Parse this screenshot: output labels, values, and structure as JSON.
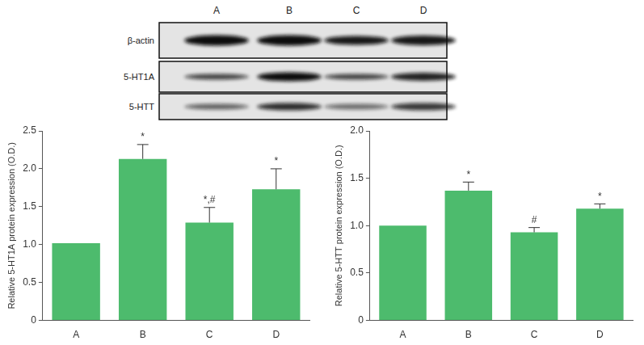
{
  "blot": {
    "lanes": [
      "A",
      "B",
      "C",
      "D"
    ],
    "rows": [
      "β-actin",
      "5-HT1A",
      "5-HTT"
    ]
  },
  "chart_data": [
    {
      "type": "bar",
      "categories": [
        "A",
        "B",
        "C",
        "D"
      ],
      "values": [
        1.02,
        2.13,
        1.29,
        1.73
      ],
      "errors": [
        0,
        0.19,
        0.2,
        0.27
      ],
      "annotations": [
        {
          "category": "B",
          "text": "*"
        },
        {
          "category": "C",
          "text": "*,#"
        },
        {
          "category": "D",
          "text": "*"
        }
      ],
      "y_label": "Relative 5-HT1A protein expression (O.D.)",
      "color": "#4dbb6d",
      "ylim": [
        0,
        2.5
      ],
      "yticks": [
        0,
        0.5,
        {
          "value": 1,
          "label": "1.0"
        },
        1.5,
        {
          "value": 2,
          "label": "2.0"
        },
        2.5
      ],
      "grid": false
    },
    {
      "type": "bar",
      "categories": [
        "A",
        "B",
        "C",
        "D"
      ],
      "values": [
        1.0,
        1.37,
        0.93,
        1.18
      ],
      "errors": [
        0,
        0.09,
        0.05,
        0.05
      ],
      "annotations": [
        {
          "category": "B",
          "text": "*"
        },
        {
          "category": "C",
          "text": "#"
        },
        {
          "category": "D",
          "text": "*"
        }
      ],
      "y_label": "Relative 5-HTT protein expression (O.D.)",
      "color": "#4dbb6d",
      "ylim": [
        0,
        2.0
      ],
      "yticks": [
        0,
        0.5,
        {
          "value": 1,
          "label": "1.0"
        },
        1.5,
        {
          "value": 2,
          "label": "2.0"
        }
      ],
      "grid": false
    }
  ]
}
